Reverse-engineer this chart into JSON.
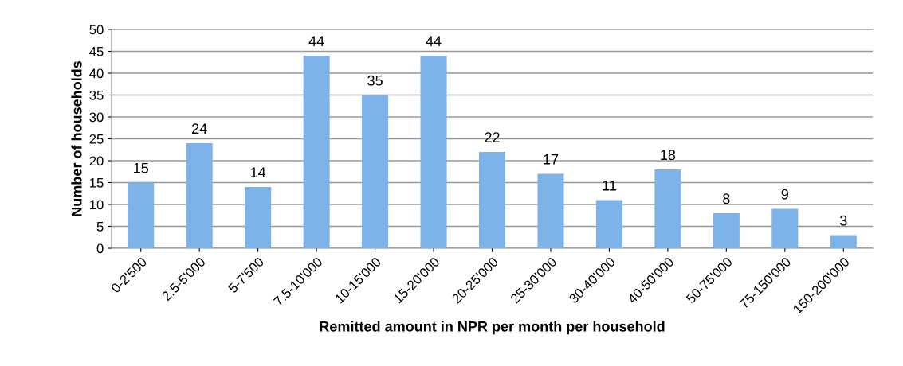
{
  "chart_data": {
    "type": "bar",
    "xlabel": "Remitted amount in NPR per month per household",
    "ylabel": "Number of households",
    "categories": [
      "0-2'500",
      "2.5-5'000",
      "5-7'500",
      "7.5-10'000",
      "10-15'000",
      "15-20'000",
      "20-25'000",
      "25-30'000",
      "30-40'000",
      "40-50'000",
      "50-75'000",
      "75-150'000",
      "150-200'000"
    ],
    "values": [
      15,
      24,
      14,
      44,
      35,
      44,
      22,
      17,
      11,
      18,
      8,
      9,
      3
    ],
    "color": "#7db3e8",
    "ylim": [
      0,
      50
    ],
    "yticks": [
      0,
      5,
      10,
      15,
      20,
      25,
      30,
      35,
      40,
      45,
      50
    ],
    "grid": "y",
    "data_labels": true,
    "legend": false
  }
}
